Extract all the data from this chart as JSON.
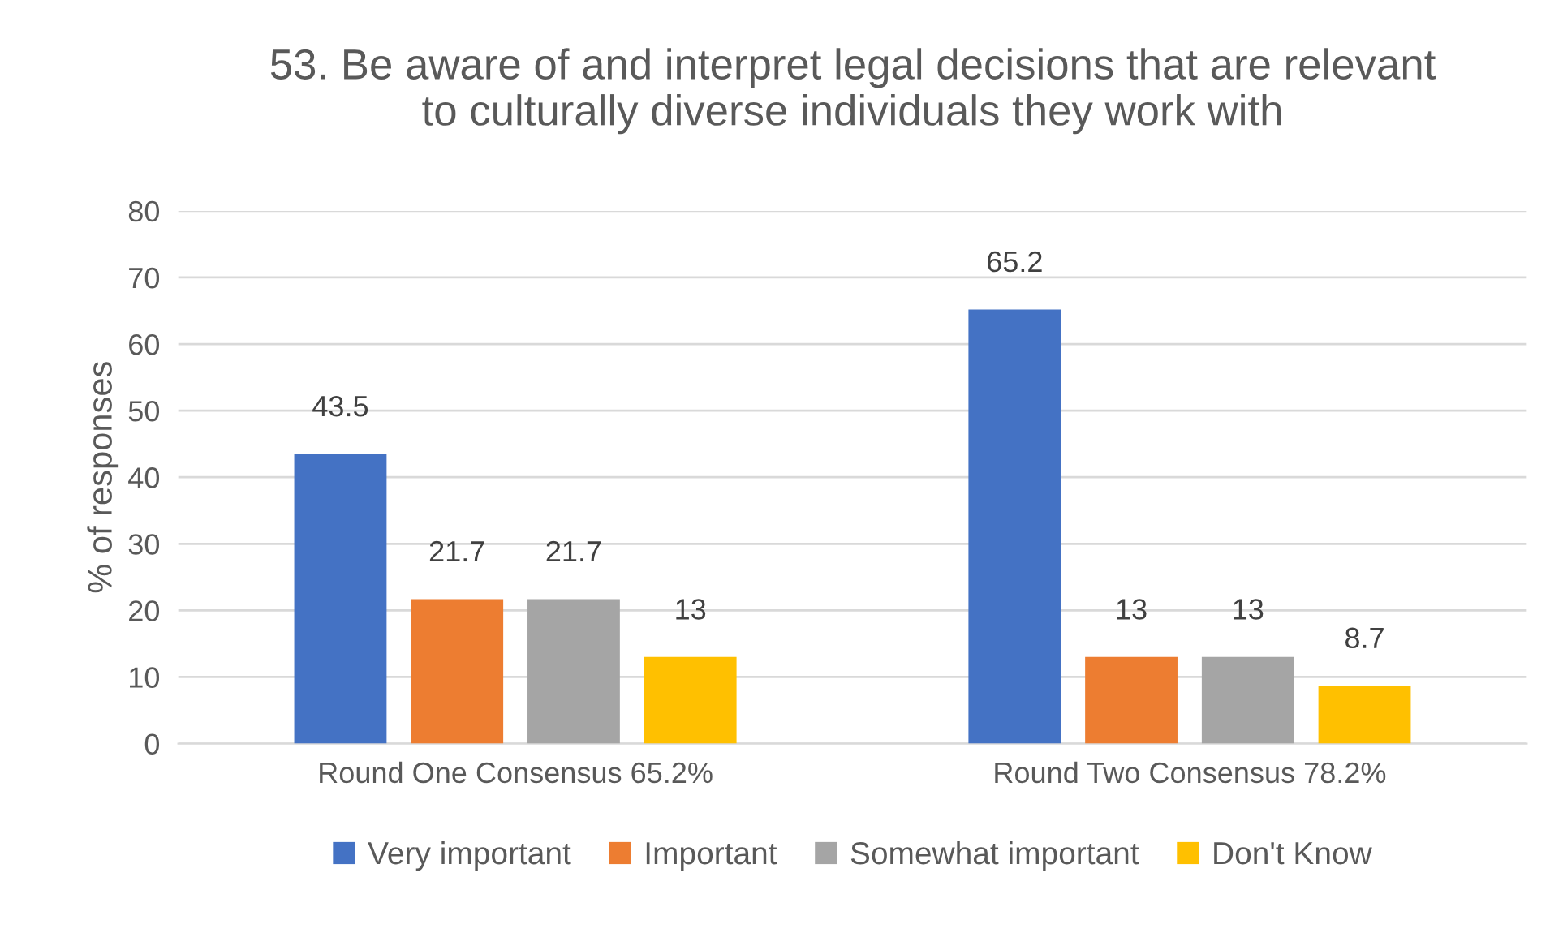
{
  "chart_data": {
    "type": "bar",
    "title": "53. Be aware of and interpret legal decisions that are relevant\nto culturally diverse individuals they work with",
    "ylabel": "% of responses",
    "categories": [
      "Round One Consensus 65.2%",
      "Round Two Consensus 78.2%"
    ],
    "series": [
      {
        "name": "Very important",
        "color": "#4472c4",
        "values": [
          43.5,
          65.2
        ]
      },
      {
        "name": "Important",
        "color": "#ed7d31",
        "values": [
          21.7,
          13
        ]
      },
      {
        "name": "Somewhat important",
        "color": "#a5a5a5",
        "values": [
          21.7,
          13
        ]
      },
      {
        "name": "Don't Know",
        "color": "#ffc000",
        "values": [
          13,
          8.7
        ]
      }
    ],
    "ylim": [
      0,
      80
    ],
    "yticks": [
      0,
      10,
      20,
      30,
      40,
      50,
      60,
      70,
      80
    ],
    "grid": "y",
    "legend": "bottom",
    "data_labels": true
  }
}
